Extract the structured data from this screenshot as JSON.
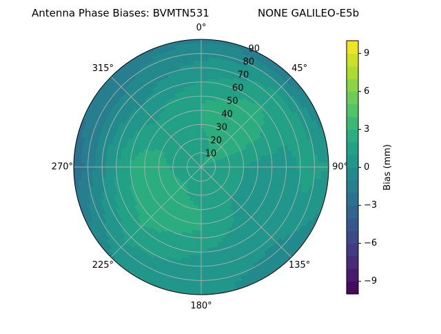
{
  "chart_data": {
    "type": "heatmap",
    "projection": "polar",
    "title_left": "Antenna Phase Biases: BVMTN531",
    "title_right": "NONE GALILEO-E5b",
    "azimuth_tick_labels": [
      "0°",
      "45°",
      "90°",
      "135°",
      "180°",
      "225°",
      "270°",
      "315°"
    ],
    "azimuth_ticks_deg": [
      0,
      45,
      90,
      135,
      180,
      225,
      270,
      315
    ],
    "radial_tick_labels": [
      "10",
      "20",
      "30",
      "40",
      "50",
      "60",
      "70",
      "80",
      "90"
    ],
    "radial_ticks": [
      10,
      20,
      30,
      40,
      50,
      60,
      70,
      80,
      90
    ],
    "radial_range": [
      0,
      90
    ],
    "grid": true,
    "colorbar": {
      "label": "Bias (mm)",
      "range": [
        -10,
        10
      ],
      "tick_values": [
        -9,
        -6,
        -3,
        0,
        3,
        6,
        9
      ],
      "tick_labels": [
        "−9",
        "−6",
        "−3",
        "0",
        "3",
        "6",
        "9"
      ],
      "colormap": "viridis",
      "levels": 20
    },
    "field_samples": {
      "description_units": "bias in mm sampled by zenith ring (deg) and azimuth (deg)",
      "zenith_rings": [
        15,
        30,
        45,
        60,
        75,
        88
      ],
      "azimuths": [
        0,
        45,
        90,
        135,
        180,
        225,
        270,
        315
      ],
      "values": [
        [
          1.5,
          2.5,
          1.5,
          1.0,
          1.0,
          2.0,
          1.5,
          1.5
        ],
        [
          2.0,
          3.0,
          1.0,
          1.0,
          2.0,
          3.0,
          2.5,
          1.5
        ],
        [
          2.0,
          3.0,
          0.5,
          0.5,
          2.0,
          2.5,
          2.5,
          1.0
        ],
        [
          1.0,
          2.0,
          0.5,
          0.0,
          1.0,
          2.0,
          1.0,
          0.0
        ],
        [
          0.0,
          1.0,
          1.5,
          0.0,
          0.5,
          1.0,
          -1.0,
          -1.0
        ],
        [
          -1.0,
          -1.5,
          1.0,
          -1.0,
          0.5,
          0.0,
          -2.5,
          -1.5
        ]
      ]
    }
  }
}
